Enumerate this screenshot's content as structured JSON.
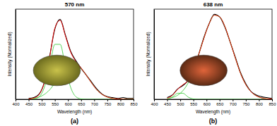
{
  "chart_data": [
    {
      "type": "line",
      "title": "570 nm",
      "subtitle": "(a)",
      "x_label": "Wavelength (nm)",
      "y_label": "Intensity (Normalized)",
      "x": [
        450,
        470,
        490,
        510,
        530,
        550,
        570,
        590,
        610,
        630,
        650,
        670,
        690,
        710,
        730,
        750,
        770,
        790,
        810,
        830,
        850
      ],
      "xlim": [
        400,
        850
      ],
      "xticks": [
        400,
        450,
        500,
        550,
        600,
        650,
        700,
        750,
        800,
        850
      ],
      "ylim": [
        0,
        1.05
      ],
      "tick_labels": "x",
      "series": [
        {
          "color": "#000000",
          "values": [
            0.01,
            0.02,
            0.06,
            0.2,
            0.5,
            0.82,
            0.93,
            0.75,
            0.56,
            0.45,
            0.36,
            0.28,
            0.2,
            0.12,
            0.06,
            0.03,
            0.02,
            0.01,
            0.02,
            0.01,
            0.01
          ]
        },
        {
          "color": "#ff0000",
          "values": [
            0.003,
            0.014,
            0.056,
            0.197,
            0.49,
            0.83,
            0.92,
            0.74,
            0.55,
            0.44,
            0.364,
            0.28,
            0.19,
            0.11,
            0.057,
            0.026,
            0.01,
            0.003,
            0.001,
            0,
            0
          ]
        },
        {
          "color": "#44cc44",
          "values": [
            0,
            0.004,
            0.03,
            0.14,
            0.38,
            0.64,
            0.64,
            0.38,
            0.14,
            0.03,
            0.004,
            0,
            0,
            0,
            0,
            0,
            0,
            0,
            0,
            0,
            0
          ]
        },
        {
          "color": "#44cc44",
          "values": [
            0.003,
            0.01,
            0.026,
            0.057,
            0.11,
            0.19,
            0.28,
            0.36,
            0.41,
            0.41,
            0.36,
            0.28,
            0.19,
            0.11,
            0.057,
            0.026,
            0.01,
            0.003,
            0.001,
            0,
            0
          ]
        }
      ]
    },
    {
      "type": "line",
      "title": "638 nm",
      "subtitle": "(b)",
      "x_label": "Wavelength (nm)",
      "y_label": "Intensity (Normalized)",
      "x": [
        450,
        470,
        490,
        510,
        530,
        550,
        570,
        590,
        610,
        630,
        650,
        670,
        690,
        710,
        730,
        750,
        770,
        790,
        810,
        830,
        850
      ],
      "xlim": [
        400,
        850
      ],
      "xticks": [
        400,
        450,
        500,
        550,
        600,
        650,
        700,
        750,
        800,
        850
      ],
      "ylim": [
        0,
        1.05
      ],
      "tick_labels": "x",
      "series": [
        {
          "color": "#000000",
          "values": [
            0.02,
            0.05,
            0.12,
            0.16,
            0.22,
            0.34,
            0.52,
            0.72,
            0.88,
            0.99,
            0.96,
            0.84,
            0.67,
            0.49,
            0.31,
            0.18,
            0.09,
            0.05,
            0.03,
            0.02,
            0.01
          ]
        },
        {
          "color": "#ff0000",
          "values": [
            0.011,
            0.046,
            0.117,
            0.17,
            0.216,
            0.334,
            0.52,
            0.71,
            0.88,
            0.98,
            0.96,
            0.85,
            0.67,
            0.48,
            0.3,
            0.17,
            0.087,
            0.04,
            0.016,
            0.006,
            0.002
          ]
        },
        {
          "color": "#44cc44",
          "values": [
            0.004,
            0.026,
            0.07,
            0.07,
            0.026,
            0.004,
            0,
            0,
            0,
            0,
            0,
            0,
            0,
            0,
            0,
            0,
            0,
            0,
            0,
            0,
            0
          ]
        },
        {
          "color": "#44cc44",
          "values": [
            0.007,
            0.02,
            0.047,
            0.1,
            0.19,
            0.33,
            0.52,
            0.71,
            0.88,
            0.98,
            0.96,
            0.85,
            0.67,
            0.48,
            0.3,
            0.17,
            0.087,
            0.04,
            0.016,
            0.006,
            0.002
          ]
        }
      ]
    }
  ]
}
